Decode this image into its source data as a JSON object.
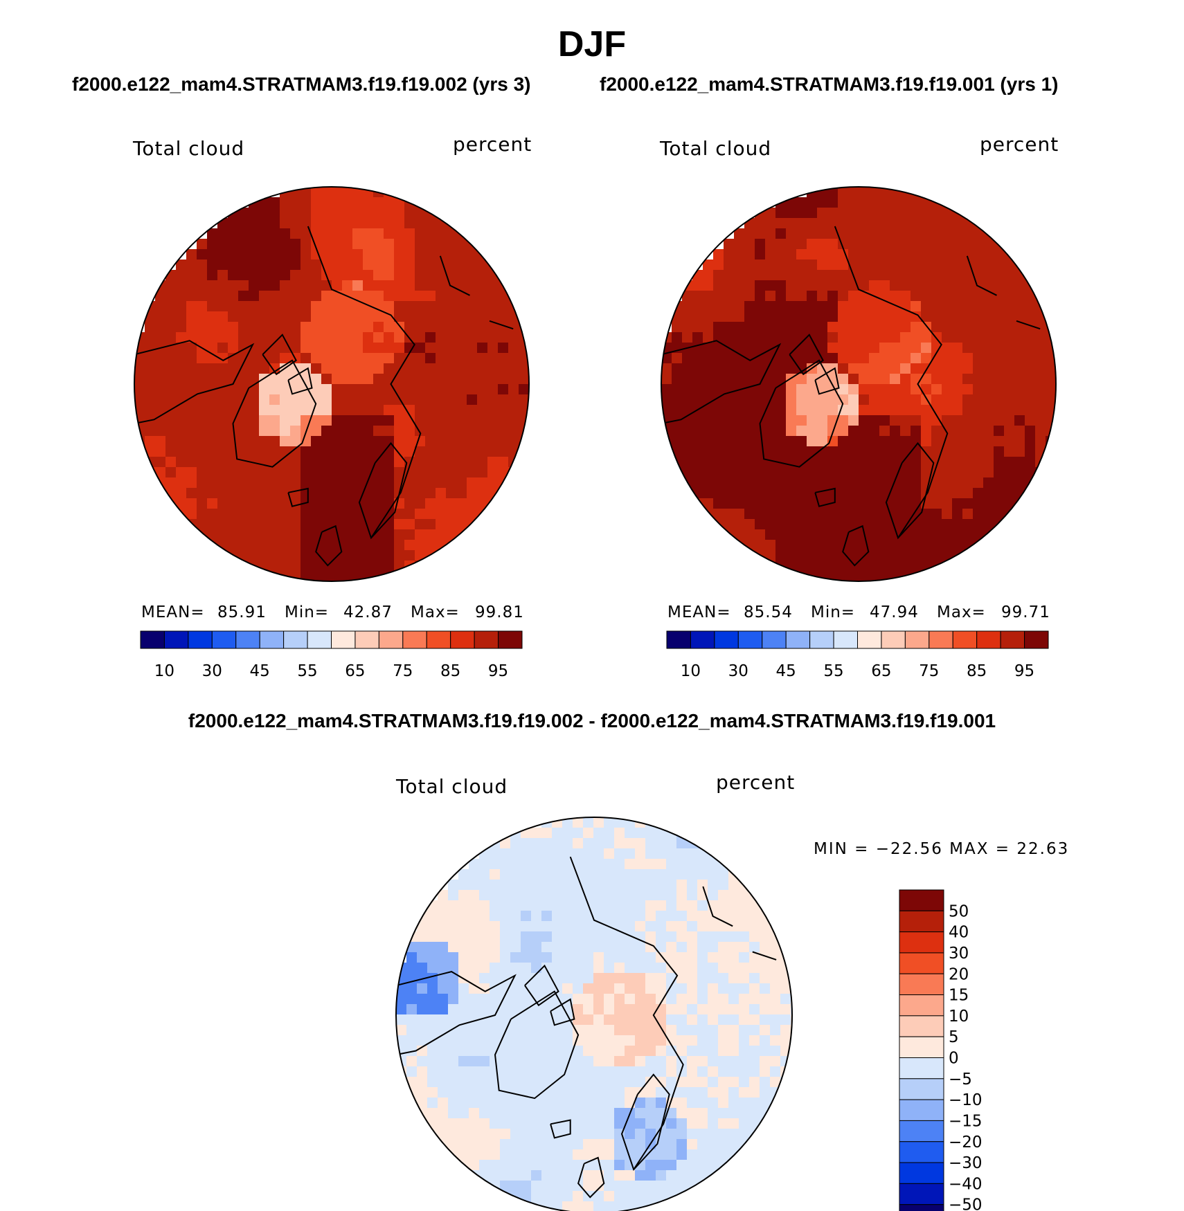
{
  "title": "DJF",
  "case_titles": {
    "left": "f2000.e122_mam4.STRATMAM3.f19.f19.002 (yrs 3)",
    "right": "f2000.e122_mam4.STRATMAM3.f19.f19.001 (yrs 1)"
  },
  "diff_title": "f2000.e122_mam4.STRATMAM3.f19.f19.002 - f2000.e122_mam4.STRATMAM3.f19.f19.001",
  "panels": [
    {
      "variable": "Total cloud",
      "units": "percent",
      "mean_label": "MEAN=",
      "mean": "85.91",
      "min_label": "Min=",
      "min": "42.87",
      "max_label": "Max=",
      "max": "99.81"
    },
    {
      "variable": "Total cloud",
      "units": "percent",
      "mean_label": "MEAN=",
      "mean": "85.54",
      "min_label": "Min=",
      "min": "47.94",
      "max_label": "Max=",
      "max": "99.71"
    }
  ],
  "diff_panel": {
    "variable": "Total cloud",
    "units": "percent",
    "minmax_text": "MIN = −22.56 MAX =   22.63"
  },
  "chart_data": [
    {
      "type": "heatmap",
      "projection": "north-polar-stereographic",
      "title": "Total cloud",
      "units": "percent",
      "stats": {
        "mean": 85.91,
        "min": 42.87,
        "max": 99.81
      },
      "colorbar_ticks": [
        "10",
        "30",
        "45",
        "55",
        "65",
        "75",
        "85",
        "95"
      ],
      "levels": [
        5,
        10,
        20,
        30,
        40,
        45,
        50,
        55,
        60,
        65,
        70,
        75,
        80,
        85,
        90,
        95
      ],
      "colors": [
        "#08006e",
        "#0016b8",
        "#0038e0",
        "#1f5cf0",
        "#4d82f5",
        "#8fb2f8",
        "#b6cff9",
        "#d8e7fb",
        "#fee9dd",
        "#fdccb8",
        "#fca88c",
        "#f97a55",
        "#f04f25",
        "#dd3010",
        "#b5200a",
        "#7d0706"
      ]
    },
    {
      "type": "heatmap",
      "projection": "north-polar-stereographic",
      "title": "Total cloud",
      "units": "percent",
      "stats": {
        "mean": 85.54,
        "min": 47.94,
        "max": 99.71
      },
      "colorbar_ticks": [
        "10",
        "30",
        "45",
        "55",
        "65",
        "75",
        "85",
        "95"
      ],
      "levels": [
        5,
        10,
        20,
        30,
        40,
        45,
        50,
        55,
        60,
        65,
        70,
        75,
        80,
        85,
        90,
        95
      ],
      "colors": [
        "#08006e",
        "#0016b8",
        "#0038e0",
        "#1f5cf0",
        "#4d82f5",
        "#8fb2f8",
        "#b6cff9",
        "#d8e7fb",
        "#fee9dd",
        "#fdccb8",
        "#fca88c",
        "#f97a55",
        "#f04f25",
        "#dd3010",
        "#b5200a",
        "#7d0706"
      ]
    },
    {
      "type": "heatmap",
      "projection": "north-polar-stereographic",
      "title": "Total cloud",
      "units": "percent",
      "stats": {
        "min": -22.56,
        "max": 22.63
      },
      "colorbar_ticks": [
        "50",
        "40",
        "30",
        "20",
        "15",
        "10",
        "5",
        "0",
        "−5",
        "−10",
        "−15",
        "−20",
        "−30",
        "−40",
        "−50"
      ],
      "colors": [
        "#7d0706",
        "#b5200a",
        "#dd3010",
        "#f04f25",
        "#f97a55",
        "#fca88c",
        "#fdccb8",
        "#fee9dd",
        "#d8e7fb",
        "#b6cff9",
        "#8fb2f8",
        "#4d82f5",
        "#1f5cf0",
        "#0038e0",
        "#0016b8",
        "#08006e"
      ]
    }
  ]
}
